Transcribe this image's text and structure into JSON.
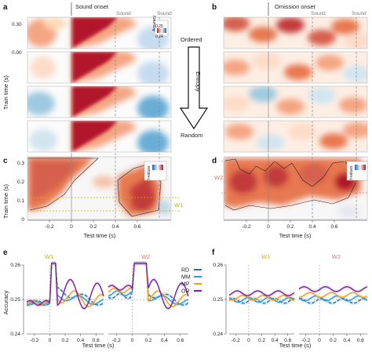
{
  "panels": {
    "a": {
      "label": "a",
      "event": "Sound onset",
      "sound_labels": [
        "Sound",
        "Sound"
      ],
      "ylabel": "Train time (s)",
      "yticks_top": "0.30",
      "yticks_bottom": "0.00"
    },
    "b": {
      "label": "b",
      "event": "Omission onset",
      "sound_labels": [
        "Sound",
        "Sound"
      ]
    },
    "c": {
      "label": "c",
      "ylabel": "Train time (s)",
      "xlabel": "Test time (s)",
      "yticks": [
        "0.3",
        "0.2",
        "0.1",
        "0"
      ],
      "xticks": [
        "-0.2",
        "0",
        "0.2",
        "0.4",
        "0.6"
      ],
      "window_label": "W1"
    },
    "d": {
      "label": "d",
      "xlabel": "Test time (s)",
      "xticks": [
        "-0.2",
        "0",
        "0.2",
        "0.4",
        "0.6"
      ],
      "window_label": "W2"
    },
    "e": {
      "label": "e",
      "ylabel": "Accuracy",
      "xlabel": "Test time (s)",
      "yticks": [
        "0.26",
        "0.25",
        "0.24"
      ],
      "xticks": [
        "-0.2",
        "0",
        "0.2",
        "0.4",
        "0.6"
      ],
      "window_labels": [
        "W1",
        "W2"
      ]
    },
    "f": {
      "label": "f",
      "xlabel": "Test time (s)",
      "yticks": [
        "0.26",
        "0.25",
        "0.24"
      ],
      "xticks": [
        "-0.2",
        "0",
        "0.2",
        "0.4",
        "0.6"
      ],
      "window_labels": [
        "W1",
        "W2"
      ]
    }
  },
  "colorbar": {
    "title": "Accuracy",
    "ticks": [
      "0.25",
      "0.24"
    ],
    "title_cd": "t-values"
  },
  "entropy": {
    "top": "Ordered",
    "mid": "Entropy",
    "bottom": "Random"
  },
  "legend": [
    {
      "name": "RD",
      "color": "#1f6fb8"
    },
    {
      "name": "MM",
      "color": "#2b9bd3"
    },
    {
      "name": "MP",
      "color": "#f0a020"
    },
    {
      "name": "OR",
      "color": "#7a1fa2"
    }
  ],
  "colors": {
    "window1": "#c8b400",
    "window2": "#e07a6a",
    "heat_red": "#b2182b",
    "heat_blue": "#2166ac"
  }
}
